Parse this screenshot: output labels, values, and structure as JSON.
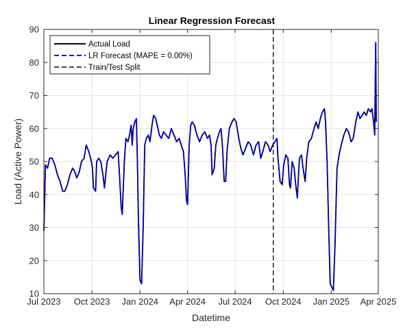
{
  "chart_data": {
    "type": "line",
    "title": "Linear Regression Forecast",
    "xlabel": "Datetime",
    "ylabel": "Load (Active Power)",
    "xlim": [
      "2023-07-01",
      "2025-04-01"
    ],
    "ylim": [
      10,
      90
    ],
    "xticks": [
      {
        "date": "2023-07-01",
        "label": "Jul 2023"
      },
      {
        "date": "2023-10-01",
        "label": "Oct 2023"
      },
      {
        "date": "2024-01-01",
        "label": "Jan 2024"
      },
      {
        "date": "2024-04-01",
        "label": "Apr 2024"
      },
      {
        "date": "2024-07-01",
        "label": "Jul 2024"
      },
      {
        "date": "2024-10-01",
        "label": "Oct 2024"
      },
      {
        "date": "2025-01-01",
        "label": "Jan 2025"
      },
      {
        "date": "2025-04-01",
        "label": "Apr 2025"
      }
    ],
    "yticks": [
      10,
      20,
      30,
      40,
      50,
      60,
      70,
      80,
      90
    ],
    "grid": true,
    "legend_position": "top-left",
    "split_date": "2024-09-12",
    "series": [
      {
        "name": "Actual Load",
        "color": "#000000",
        "style": "solid",
        "points": [
          [
            "2023-07-01",
            29
          ],
          [
            "2023-07-04",
            49
          ],
          [
            "2023-07-08",
            48
          ],
          [
            "2023-07-12",
            51
          ],
          [
            "2023-07-17",
            51
          ],
          [
            "2023-07-22",
            49
          ],
          [
            "2023-07-27",
            46
          ],
          [
            "2023-08-01",
            44
          ],
          [
            "2023-08-06",
            41
          ],
          [
            "2023-08-10",
            41
          ],
          [
            "2023-08-15",
            43
          ],
          [
            "2023-08-20",
            46
          ],
          [
            "2023-08-25",
            48
          ],
          [
            "2023-08-29",
            47
          ],
          [
            "2023-09-02",
            45
          ],
          [
            "2023-09-07",
            47
          ],
          [
            "2023-09-11",
            50
          ],
          [
            "2023-09-16",
            51
          ],
          [
            "2023-09-20",
            55
          ],
          [
            "2023-09-25",
            53
          ],
          [
            "2023-09-30",
            50
          ],
          [
            "2023-10-02",
            48
          ],
          [
            "2023-10-04",
            42
          ],
          [
            "2023-10-08",
            41
          ],
          [
            "2023-10-10",
            50
          ],
          [
            "2023-10-14",
            51
          ],
          [
            "2023-10-18",
            50
          ],
          [
            "2023-10-22",
            46
          ],
          [
            "2023-10-25",
            42
          ],
          [
            "2023-10-30",
            50
          ],
          [
            "2023-11-05",
            52
          ],
          [
            "2023-11-10",
            51
          ],
          [
            "2023-11-15",
            52
          ],
          [
            "2023-11-20",
            53
          ],
          [
            "2023-11-22",
            48
          ],
          [
            "2023-11-26",
            36
          ],
          [
            "2023-11-28",
            34
          ],
          [
            "2023-12-02",
            50
          ],
          [
            "2023-12-05",
            57
          ],
          [
            "2023-12-09",
            56
          ],
          [
            "2023-12-12",
            58
          ],
          [
            "2023-12-15",
            61
          ],
          [
            "2023-12-17",
            55
          ],
          [
            "2023-12-19",
            60
          ],
          [
            "2023-12-22",
            62
          ],
          [
            "2023-12-25",
            63
          ],
          [
            "2023-12-27",
            50
          ],
          [
            "2023-12-29",
            32
          ],
          [
            "2024-01-01",
            14
          ],
          [
            "2024-01-04",
            13
          ],
          [
            "2024-01-07",
            30
          ],
          [
            "2024-01-10",
            55
          ],
          [
            "2024-01-13",
            57
          ],
          [
            "2024-01-17",
            58
          ],
          [
            "2024-01-20",
            56
          ],
          [
            "2024-01-24",
            61
          ],
          [
            "2024-01-27",
            64
          ],
          [
            "2024-01-31",
            63
          ],
          [
            "2024-02-03",
            61
          ],
          [
            "2024-02-07",
            58
          ],
          [
            "2024-02-11",
            57
          ],
          [
            "2024-02-15",
            59
          ],
          [
            "2024-02-20",
            58
          ],
          [
            "2024-02-25",
            57
          ],
          [
            "2024-03-01",
            60
          ],
          [
            "2024-03-06",
            58
          ],
          [
            "2024-03-11",
            56
          ],
          [
            "2024-03-16",
            57
          ],
          [
            "2024-03-20",
            55
          ],
          [
            "2024-03-24",
            53
          ],
          [
            "2024-03-27",
            47
          ],
          [
            "2024-03-30",
            38
          ],
          [
            "2024-04-01",
            37
          ],
          [
            "2024-04-04",
            55
          ],
          [
            "2024-04-07",
            61
          ],
          [
            "2024-04-10",
            62
          ],
          [
            "2024-04-14",
            61
          ],
          [
            "2024-04-19",
            58
          ],
          [
            "2024-04-24",
            56
          ],
          [
            "2024-04-29",
            58
          ],
          [
            "2024-05-04",
            59
          ],
          [
            "2024-05-09",
            57
          ],
          [
            "2024-05-13",
            58
          ],
          [
            "2024-05-16",
            55
          ],
          [
            "2024-05-18",
            46
          ],
          [
            "2024-05-22",
            48
          ],
          [
            "2024-05-25",
            55
          ],
          [
            "2024-05-28",
            57
          ],
          [
            "2024-06-01",
            59
          ],
          [
            "2024-06-04",
            60
          ],
          [
            "2024-06-07",
            54
          ],
          [
            "2024-06-10",
            44
          ],
          [
            "2024-06-13",
            44
          ],
          [
            "2024-06-16",
            54
          ],
          [
            "2024-06-20",
            60
          ],
          [
            "2024-06-25",
            62
          ],
          [
            "2024-06-29",
            63
          ],
          [
            "2024-07-03",
            62
          ],
          [
            "2024-07-08",
            57
          ],
          [
            "2024-07-12",
            54
          ],
          [
            "2024-07-16",
            52
          ],
          [
            "2024-07-21",
            54
          ],
          [
            "2024-07-26",
            56
          ],
          [
            "2024-07-31",
            55
          ],
          [
            "2024-08-05",
            52
          ],
          [
            "2024-08-10",
            55
          ],
          [
            "2024-08-15",
            56
          ],
          [
            "2024-08-19",
            51
          ],
          [
            "2024-08-23",
            53
          ],
          [
            "2024-08-28",
            56
          ],
          [
            "2024-09-02",
            55
          ],
          [
            "2024-09-06",
            53
          ],
          [
            "2024-09-11",
            55
          ],
          [
            "2024-09-15",
            56
          ],
          [
            "2024-09-19",
            57
          ],
          [
            "2024-09-21",
            51
          ],
          [
            "2024-09-25",
            44
          ],
          [
            "2024-09-29",
            43
          ],
          [
            "2024-10-02",
            49
          ],
          [
            "2024-10-06",
            52
          ],
          [
            "2024-10-10",
            51
          ],
          [
            "2024-10-13",
            43
          ],
          [
            "2024-10-15",
            42
          ],
          [
            "2024-10-18",
            50
          ],
          [
            "2024-10-22",
            48
          ],
          [
            "2024-10-25",
            43
          ],
          [
            "2024-10-28",
            39
          ],
          [
            "2024-11-01",
            51
          ],
          [
            "2024-11-05",
            52
          ],
          [
            "2024-11-08",
            48
          ],
          [
            "2024-11-12",
            44
          ],
          [
            "2024-11-15",
            51
          ],
          [
            "2024-11-19",
            56
          ],
          [
            "2024-11-24",
            57
          ],
          [
            "2024-11-29",
            60
          ],
          [
            "2024-12-03",
            62
          ],
          [
            "2024-12-07",
            60
          ],
          [
            "2024-12-11",
            63
          ],
          [
            "2024-12-15",
            65
          ],
          [
            "2024-12-19",
            66
          ],
          [
            "2024-12-21",
            62
          ],
          [
            "2024-12-24",
            50
          ],
          [
            "2024-12-27",
            30
          ],
          [
            "2024-12-30",
            13
          ],
          [
            "2025-01-02",
            12
          ],
          [
            "2025-01-05",
            11
          ],
          [
            "2025-01-08",
            24
          ],
          [
            "2025-01-12",
            48
          ],
          [
            "2025-01-16",
            52
          ],
          [
            "2025-01-20",
            55
          ],
          [
            "2025-01-25",
            58
          ],
          [
            "2025-01-30",
            60
          ],
          [
            "2025-02-03",
            59
          ],
          [
            "2025-02-08",
            56
          ],
          [
            "2025-02-12",
            57
          ],
          [
            "2025-02-17",
            62
          ],
          [
            "2025-02-21",
            65
          ],
          [
            "2025-02-25",
            63
          ],
          [
            "2025-03-01",
            64
          ],
          [
            "2025-03-05",
            65
          ],
          [
            "2025-03-09",
            64
          ],
          [
            "2025-03-13",
            66
          ],
          [
            "2025-03-17",
            65
          ],
          [
            "2025-03-20",
            66
          ],
          [
            "2025-03-23",
            62
          ],
          [
            "2025-03-25",
            58
          ],
          [
            "2025-03-26",
            70
          ],
          [
            "2025-03-27",
            86
          ],
          [
            "2025-03-28",
            62
          ]
        ]
      },
      {
        "name": "LR Forecast (MAPE = 0.00%)",
        "color": "#0000ff",
        "style": "dashed",
        "same_values_as": "Actual Load"
      },
      {
        "name": "Train/Test Split",
        "color": "#000000",
        "style": "dashdot",
        "x": "2024-09-12"
      }
    ]
  }
}
